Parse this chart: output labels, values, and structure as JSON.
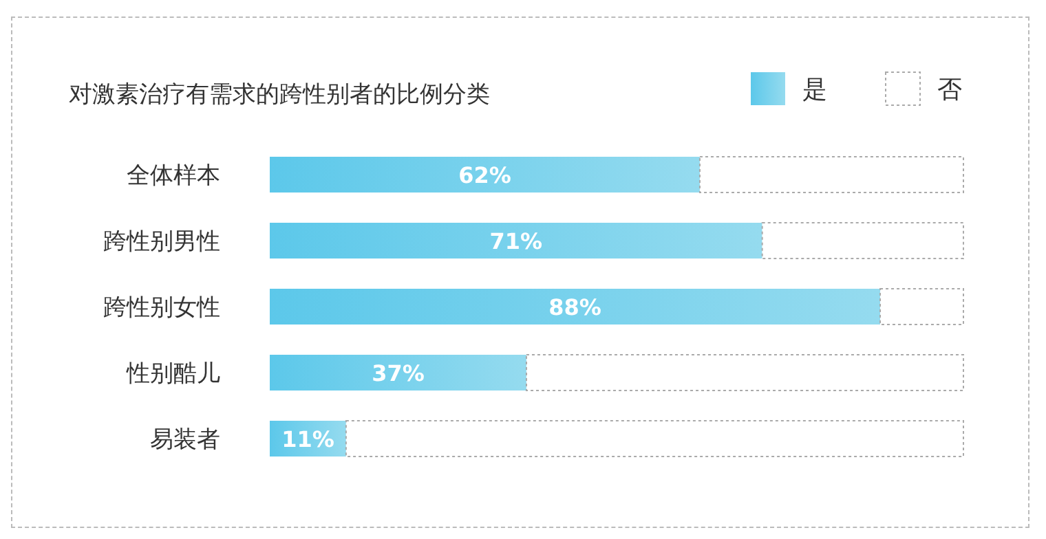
{
  "chart_data": {
    "type": "bar",
    "orientation": "horizontal",
    "stacked": true,
    "title": "对激素治疗有需求的跨性别者的比例分类",
    "legend": "top right",
    "categories": [
      "全体样本",
      "跨性别男性",
      "跨性别女性",
      "性别酷儿",
      "易装者"
    ],
    "series": [
      {
        "name": "是",
        "color": "#5cc8ea",
        "values": [
          62,
          71,
          88,
          37,
          11
        ],
        "value_labels": [
          "62%",
          "71%",
          "88%",
          "37%",
          "11%"
        ]
      },
      {
        "name": "否",
        "color": "#ffffff",
        "values": [
          38,
          29,
          12,
          63,
          89
        ]
      }
    ]
  }
}
